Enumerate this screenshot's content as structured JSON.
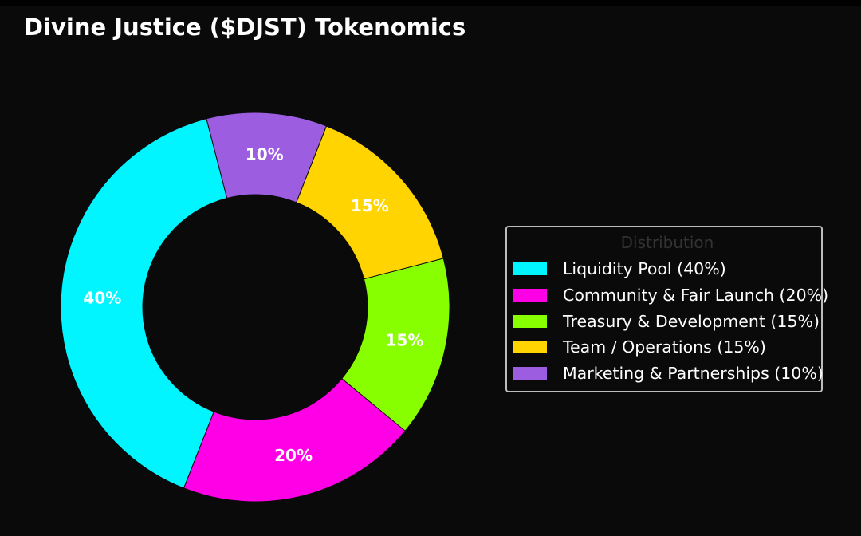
{
  "chart_data": {
    "type": "pie",
    "title": "Divine Justice ($DJST) Tokenomics",
    "legend_title": "Distribution",
    "legend_position": "right",
    "slices": [
      {
        "label": "Liquidity Pool (40%)",
        "value": 40,
        "pct_label": "40%",
        "color": "#00f5ff"
      },
      {
        "label": "Community & Fair Launch (20%)",
        "value": 20,
        "pct_label": "20%",
        "color": "#ff00e6"
      },
      {
        "label": "Treasury & Development (15%)",
        "value": 15,
        "pct_label": "15%",
        "color": "#88ff00"
      },
      {
        "label": "Team / Operations (15%)",
        "value": 15,
        "pct_label": "15%",
        "color": "#ffd400"
      },
      {
        "label": "Marketing & Partnerships (10%)",
        "value": 10,
        "pct_label": "10%",
        "color": "#9c5de0"
      }
    ]
  }
}
